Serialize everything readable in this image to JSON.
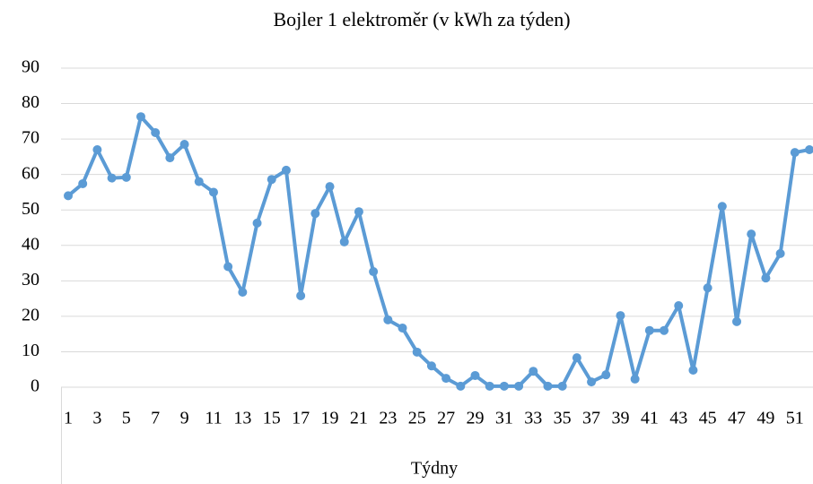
{
  "chart_data": {
    "type": "line",
    "title": "Bojler 1 elektroměr (v kWh za týden)",
    "x_label": "Týdny",
    "categories": [
      1,
      null,
      3,
      null,
      5,
      null,
      7,
      null,
      9,
      null,
      11,
      null,
      13,
      null,
      15,
      null,
      17,
      null,
      19,
      null,
      21,
      null,
      23,
      null,
      25,
      null,
      27,
      null,
      29,
      null,
      31,
      null,
      33,
      null,
      35,
      null,
      37,
      null,
      39,
      null,
      41,
      null,
      43,
      null,
      45,
      null,
      47,
      null,
      49,
      null,
      51,
      null
    ],
    "series": [
      {
        "name": "Bojler 1",
        "color": "#5b9bd5",
        "values": [
          54,
          57.4,
          67,
          59,
          59.2,
          76.3,
          71.8,
          64.7,
          68.5,
          58,
          55,
          34,
          26.8,
          46.3,
          58.6,
          61.2,
          25.8,
          49,
          56.6,
          41,
          49.5,
          32.6,
          19,
          16.7,
          9.9,
          6,
          2.5,
          0.3,
          3.3,
          0.3,
          0.3,
          0.3,
          4.5,
          0.3,
          0.3,
          8.3,
          1.5,
          3.5,
          20.2,
          2.3,
          16,
          16,
          23,
          4.8,
          28,
          51,
          18.5,
          43.2,
          30.8,
          37.7,
          66.2,
          67
        ]
      }
    ],
    "ylim": [
      0,
      90
    ],
    "yticks": [
      0,
      10,
      20,
      30,
      40,
      50,
      60,
      70,
      80,
      90
    ],
    "grid": true
  }
}
